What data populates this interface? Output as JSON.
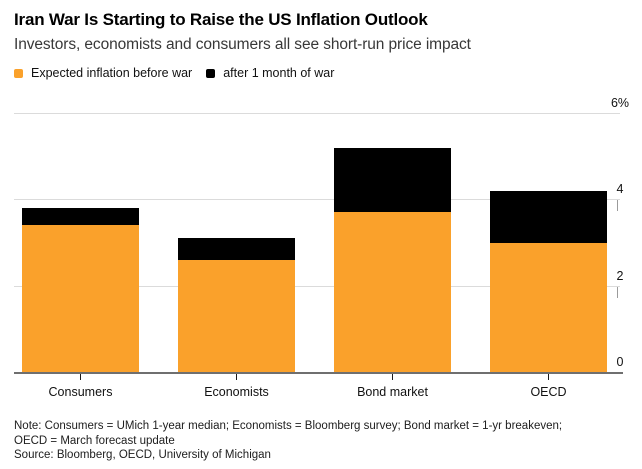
{
  "header": {
    "title": "Iran War Is Starting to Raise the US Inflation Outlook",
    "subtitle": "Investors, economists and consumers all see short-run price impact"
  },
  "legend": [
    {
      "label": "Expected inflation before war",
      "color": "#FAA12B"
    },
    {
      "label": "after 1 month of war",
      "color": "#000000"
    }
  ],
  "chart_data": {
    "type": "bar",
    "subtype": "overlay-levels",
    "title": "Iran War Is Starting to Raise the US Inflation Outlook",
    "categories": [
      "Consumers",
      "Economists",
      "Bond market",
      "OECD"
    ],
    "series": [
      {
        "name": "Expected inflation before war",
        "color": "#FAA12B",
        "values": [
          3.4,
          2.6,
          3.7,
          3.0
        ]
      },
      {
        "name": "after 1 month of war",
        "color": "#000000",
        "values": [
          3.8,
          3.1,
          5.2,
          4.2
        ]
      }
    ],
    "xlabel": "",
    "ylabel": "",
    "ylim": [
      0,
      6
    ],
    "yticks": [
      {
        "value": 6,
        "label": "6%",
        "edge_tick": false
      },
      {
        "value": 4,
        "label": "4",
        "edge_tick": true
      },
      {
        "value": 2,
        "label": "2",
        "edge_tick": true
      },
      {
        "value": 0,
        "label": "0",
        "edge_tick": false
      }
    ],
    "grid": "horizontal",
    "axis_side": "right",
    "legend_position": "top-left"
  },
  "colors": {
    "accent_orange": "#FAA12B",
    "series_black": "#000000",
    "gridline": "#dbdbdb",
    "baseline": "#6f6f6f"
  },
  "footer": {
    "note_lines": [
      "Note: Consumers = UMich 1-year median; Economists = Bloomberg survey; Bond market = 1-yr breakeven;",
      "OECD = March forecast update"
    ],
    "source": "Source: Bloomberg, OECD, University of Michigan"
  }
}
